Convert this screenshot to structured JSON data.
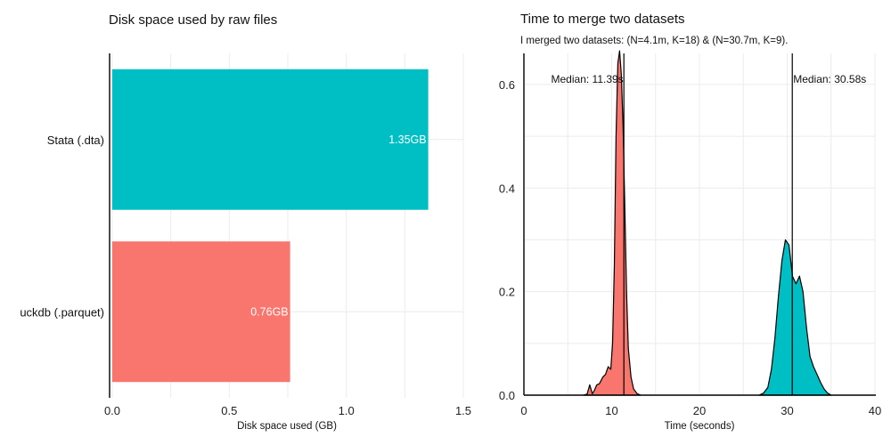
{
  "chart_data": [
    {
      "type": "bar",
      "orientation": "horizontal",
      "title": "Disk space used by raw files",
      "xlabel": "Disk space used (GB)",
      "ylabel": "",
      "xlim": [
        0,
        1.5
      ],
      "xticks": [
        "0.0",
        "0.5",
        "1.0",
        "1.5"
      ],
      "xtick_values": [
        0,
        0.5,
        1.0,
        1.5
      ],
      "categories": [
        "Stata (.dta)",
        "duckdb (.parquet)"
      ],
      "category_display": [
        "Stata (.dta)",
        "uckdb (.parquet)"
      ],
      "values": [
        1.35,
        0.76
      ],
      "data_labels": [
        "1.35GB",
        "0.76GB"
      ],
      "colors": [
        "#00BFC4",
        "#F8766D"
      ]
    },
    {
      "type": "area",
      "title": "Time to merge two datasets",
      "subtitle": "I merged two datasets:  (N=4.1m, K=18) & (N=30.7m, K=9).",
      "xlabel": "Time (seconds)",
      "ylabel": "",
      "xlim": [
        0,
        40
      ],
      "ylim": [
        0,
        0.66
      ],
      "xticks": [
        "0",
        "10",
        "20",
        "30",
        "40"
      ],
      "xtick_values": [
        0,
        10,
        20,
        30,
        40
      ],
      "yticks": [
        "0.0",
        "0.2",
        "0.4",
        "0.6"
      ],
      "ytick_values": [
        0,
        0.2,
        0.4,
        0.6
      ],
      "series": [
        {
          "name": "duckdb (.parquet)",
          "color": "#F8766D",
          "median": 11.39,
          "median_label": "Median: 11.39s",
          "x": [
            6.8,
            7.2,
            7.5,
            7.8,
            8.0,
            8.3,
            8.6,
            9.0,
            9.3,
            9.6,
            9.9,
            10.1,
            10.3,
            10.5,
            10.7,
            10.9,
            11.1,
            11.3,
            11.5,
            11.7,
            11.9,
            12.2,
            12.5,
            12.9,
            13.3
          ],
          "y": [
            0.0,
            0.002,
            0.02,
            0.003,
            0.008,
            0.02,
            0.022,
            0.035,
            0.04,
            0.055,
            0.05,
            0.1,
            0.25,
            0.5,
            0.64,
            0.665,
            0.62,
            0.52,
            0.36,
            0.2,
            0.09,
            0.035,
            0.012,
            0.003,
            0.0
          ]
        },
        {
          "name": "Stata (.dta)",
          "color": "#00BFC4",
          "median": 30.58,
          "median_label": "Median: 30.58s",
          "x": [
            26.8,
            27.3,
            27.8,
            28.2,
            28.6,
            29.0,
            29.4,
            29.8,
            30.2,
            30.6,
            31.0,
            31.4,
            31.8,
            32.2,
            32.6,
            33.0,
            33.4,
            33.8,
            34.2,
            34.6,
            35.0
          ],
          "y": [
            0.0,
            0.004,
            0.015,
            0.05,
            0.11,
            0.19,
            0.26,
            0.3,
            0.29,
            0.23,
            0.215,
            0.23,
            0.2,
            0.13,
            0.075,
            0.055,
            0.04,
            0.025,
            0.012,
            0.004,
            0.0
          ]
        }
      ]
    }
  ]
}
